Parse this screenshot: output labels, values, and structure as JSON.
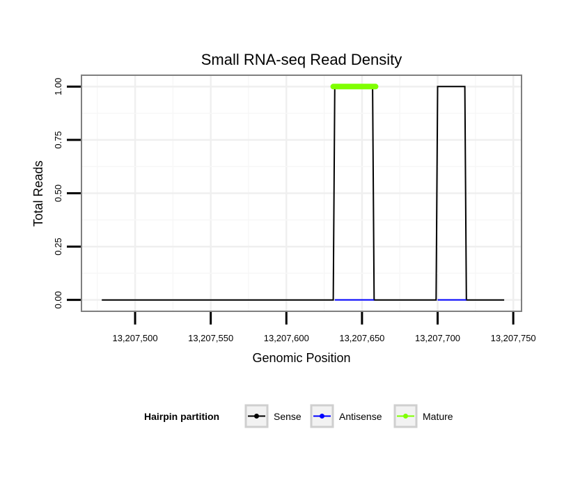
{
  "chart_data": {
    "type": "line",
    "title": "Small RNA-seq Read Density",
    "xlabel": "Genomic Position",
    "ylabel": "Total Reads",
    "xlim": [
      13207465,
      13207755
    ],
    "ylim": [
      -0.05,
      1.05
    ],
    "x_ticks": [
      13207500,
      13207550,
      13207600,
      13207650,
      13207700,
      13207750
    ],
    "x_tick_labels": [
      "13,207,500",
      "13,207,550",
      "13,207,600",
      "13,207,650",
      "13,207,700",
      "13,207,750"
    ],
    "y_ticks": [
      0,
      0.25,
      0.5,
      0.75,
      1.0
    ],
    "y_tick_labels": [
      "0.00",
      "0.25",
      "0.50",
      "0.75",
      "1.00"
    ],
    "grid": true,
    "series": [
      {
        "name": "Sense",
        "color": "#000000",
        "x": [
          13207478,
          13207631,
          13207632,
          13207657,
          13207658,
          13207699,
          13207700,
          13207718,
          13207719,
          13207744
        ],
        "y": [
          0,
          0,
          1,
          1,
          0,
          0,
          1,
          1,
          0,
          0
        ]
      },
      {
        "name": "Antisense",
        "color": "#0000ff",
        "x": [
          13207632,
          13207658,
          13207700,
          13207719
        ],
        "y": [
          0,
          0,
          0,
          0
        ],
        "segments": [
          [
            0,
            1
          ],
          [
            2,
            3
          ]
        ]
      },
      {
        "name": "Mature",
        "color": "#7fff00",
        "x": [
          13207631,
          13207659
        ],
        "y": [
          1,
          1
        ],
        "thick": true
      }
    ],
    "legend": {
      "title": "Hairpin partition",
      "position": "bottom",
      "entries": [
        "Sense",
        "Antisense",
        "Mature"
      ]
    }
  }
}
